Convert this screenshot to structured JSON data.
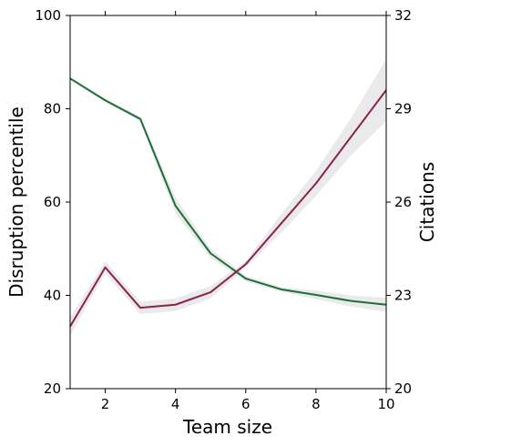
{
  "chart_data": {
    "type": "line",
    "xlabel": "Team size",
    "ylabel_left": "Disruption percentile",
    "ylabel_right": "Citations",
    "xlim": [
      1,
      10
    ],
    "ylim_left": [
      20,
      100
    ],
    "ylim_right": [
      20,
      32
    ],
    "xticks": [
      2,
      4,
      6,
      8,
      10
    ],
    "yticks_left": [
      20,
      40,
      60,
      80,
      100
    ],
    "yticks_right": [
      20,
      23,
      26,
      29,
      32
    ],
    "grid": false,
    "x": [
      1,
      2,
      3,
      4,
      5,
      6,
      7,
      8,
      9,
      10
    ],
    "series": [
      {
        "axis": "left",
        "color": "#1a7035",
        "values": [
          86.5,
          81.8,
          77.8,
          59.2,
          49.0,
          43.6,
          41.3,
          40.1,
          38.8,
          38.0
        ],
        "band_lower": [
          86.3,
          81.5,
          77.3,
          57.5,
          48.0,
          43.0,
          40.8,
          39.2,
          37.6,
          36.5
        ],
        "band_upper": [
          86.7,
          82.1,
          78.3,
          61.0,
          50.0,
          44.2,
          41.8,
          41.0,
          40.0,
          39.5
        ]
      },
      {
        "axis": "right",
        "color": "#8b2252",
        "values": [
          22.0,
          23.9,
          22.6,
          22.7,
          23.1,
          24.0,
          25.3,
          26.6,
          28.1,
          29.6
        ],
        "band_lower": [
          21.7,
          23.7,
          22.4,
          22.5,
          22.9,
          23.9,
          25.0,
          26.2,
          27.5,
          28.6
        ],
        "band_upper": [
          22.3,
          24.1,
          22.8,
          22.9,
          23.3,
          24.1,
          25.6,
          27.0,
          28.7,
          30.6
        ]
      }
    ]
  }
}
